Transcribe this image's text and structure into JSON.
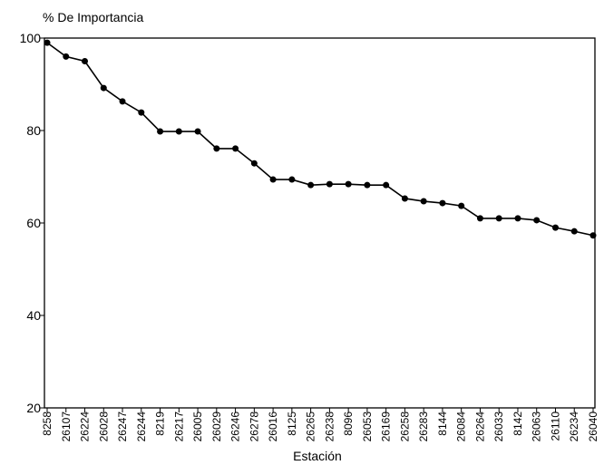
{
  "chart_data": {
    "type": "line",
    "y_label": "% De Importancia",
    "x_label": "Estación",
    "categories": [
      "8258",
      "26107",
      "26224",
      "26028",
      "26247",
      "26244",
      "8219",
      "26217",
      "26005",
      "26029",
      "26246",
      "26278",
      "26016",
      "8125",
      "26265",
      "26238",
      "8096",
      "26053",
      "26169",
      "26258",
      "26283",
      "8144",
      "26084",
      "26264",
      "26033",
      "8142",
      "26063",
      "26110",
      "26234",
      "26040"
    ],
    "values": [
      99,
      96,
      95,
      89.2,
      86.3,
      83.9,
      79.8,
      79.8,
      79.8,
      76.1,
      76.1,
      72.9,
      69.4,
      69.4,
      68.2,
      68.4,
      68.4,
      68.2,
      68.2,
      65.3,
      64.7,
      64.3,
      63.7,
      61,
      61,
      61,
      60.6,
      59,
      58.2,
      57.3
    ],
    "color": "#000000",
    "ylim": [
      20,
      100
    ],
    "yticks": [
      20,
      40,
      60,
      80,
      100
    ],
    "grid": false
  }
}
